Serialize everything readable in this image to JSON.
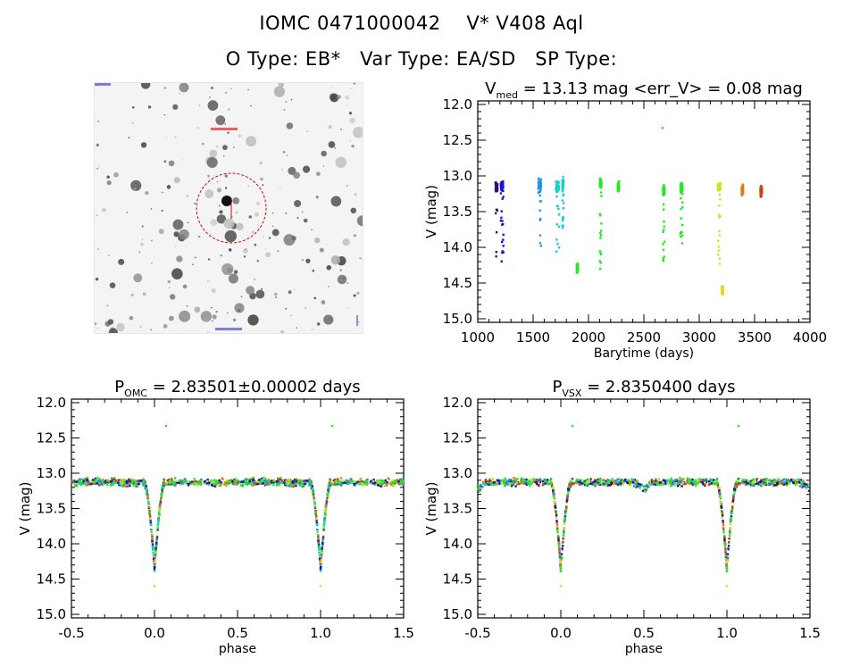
{
  "header": {
    "title_line1": "IOMC 0471000042    V* V408 Aql",
    "title_line2": "O Type: EB*   Var Type: EA/SD   SP Type:"
  },
  "colors": {
    "dark_purple": "#3a0a78",
    "blue": "#1414d2",
    "light_blue": "#1e96e6",
    "cyan": "#14d2c8",
    "green": "#28e628",
    "yellow_green": "#c8e628",
    "yellow": "#f0d214",
    "orange": "#e67814",
    "red_orange": "#c8461e",
    "marker_red": "#dc0000"
  },
  "chart_data": [
    {
      "id": "lightcurve",
      "type": "scatter",
      "title_main": "V",
      "title_sub": "med",
      "title_rest": " = 13.13 mag <err_V> = 0.08 mag",
      "xlabel": "Barytime (days)",
      "ylabel": "V (mag)",
      "xlim": [
        1000,
        4000
      ],
      "ylim": [
        15.05,
        11.95
      ],
      "y_inverted": true,
      "xticks": [
        1000,
        1500,
        2000,
        2500,
        3000,
        3500,
        4000
      ],
      "yticks": [
        12.0,
        12.5,
        13.0,
        13.5,
        14.0,
        14.5,
        15.0
      ],
      "clusters": [
        {
          "x": 1170,
          "xw": 30,
          "ybase": 13.15,
          "ylow": 14.2,
          "color": "dark_purple"
        },
        {
          "x": 1220,
          "xw": 40,
          "ybase": 13.15,
          "ylow": 14.3,
          "color": "blue"
        },
        {
          "x": 1560,
          "xw": 40,
          "ybase": 13.12,
          "ylow": 14.05,
          "color": "light_blue"
        },
        {
          "x": 1720,
          "xw": 50,
          "ybase": 13.15,
          "ylow": 14.1,
          "color": "cyan"
        },
        {
          "x": 1770,
          "xw": 20,
          "ybase": 13.1,
          "ylow": 13.75,
          "color": "cyan"
        },
        {
          "x": 1900,
          "xw": 20,
          "ybase": 14.3,
          "ylow": 14.3,
          "color": "green"
        },
        {
          "x": 2110,
          "xw": 25,
          "ybase": 13.1,
          "ylow": 14.4,
          "color": "green"
        },
        {
          "x": 2270,
          "xw": 20,
          "ybase": 13.15,
          "ylow": 13.2,
          "color": "green"
        },
        {
          "x": 2680,
          "xw": 25,
          "ybase": 13.2,
          "ylow": 14.2,
          "color": "green"
        },
        {
          "x": 2840,
          "xw": 35,
          "ybase": 13.15,
          "ylow": 13.95,
          "color": "green"
        },
        {
          "x": 3180,
          "xw": 45,
          "ybase": 13.15,
          "ylow": 14.3,
          "color": "yellow_green"
        },
        {
          "x": 3210,
          "xw": 20,
          "ybase": 14.6,
          "ylow": 14.65,
          "color": "yellow"
        },
        {
          "x": 3390,
          "xw": 25,
          "ybase": 13.2,
          "ylow": 13.25,
          "color": "orange"
        },
        {
          "x": 3560,
          "xw": 25,
          "ybase": 13.2,
          "ylow": 13.3,
          "color": "red_orange"
        }
      ],
      "outlier": {
        "x": 2670,
        "y": 12.33,
        "color": "green"
      }
    },
    {
      "id": "phase_omc",
      "type": "scatter",
      "title_main": "P",
      "title_sub": "OMC",
      "title_rest": " = 2.83501±0.00002 days",
      "xlabel": "phase",
      "ylabel": "V (mag)",
      "xlim": [
        -0.5,
        1.5
      ],
      "ylim": [
        15.05,
        11.95
      ],
      "y_inverted": true,
      "xticks": [
        -0.5,
        0.0,
        0.5,
        1.0,
        1.5
      ],
      "yticks": [
        12.0,
        12.5,
        13.0,
        13.5,
        14.0,
        14.5,
        15.0
      ],
      "baseline": 13.13,
      "eclipse_depth": 14.35,
      "secondary_dip": 0.0,
      "outliers": [
        {
          "x": 0.07,
          "y": 12.33,
          "color": "green"
        },
        {
          "x": 1.07,
          "y": 12.33,
          "color": "green"
        },
        {
          "x": 0.0,
          "y": 14.6,
          "color": "yellow"
        },
        {
          "x": 1.0,
          "y": 14.6,
          "color": "yellow"
        }
      ]
    },
    {
      "id": "phase_vsx",
      "type": "scatter",
      "title_main": "P",
      "title_sub": "VSX",
      "title_rest": " = 2.8350400 days",
      "xlabel": "phase",
      "ylabel": "V (mag)",
      "xlim": [
        -0.5,
        1.5
      ],
      "ylim": [
        15.05,
        11.95
      ],
      "y_inverted": true,
      "xticks": [
        -0.5,
        0.0,
        0.5,
        1.0,
        1.5
      ],
      "yticks": [
        12.0,
        12.5,
        13.0,
        13.5,
        14.0,
        14.5,
        15.0
      ],
      "baseline": 13.13,
      "eclipse_depth": 14.35,
      "secondary_dip": 0.1,
      "outliers": [
        {
          "x": 0.07,
          "y": 12.33,
          "color": "green"
        },
        {
          "x": 1.07,
          "y": 12.33,
          "color": "green"
        },
        {
          "x": 0.0,
          "y": 14.6,
          "color": "yellow"
        },
        {
          "x": 1.0,
          "y": 14.6,
          "color": "yellow"
        }
      ]
    }
  ]
}
